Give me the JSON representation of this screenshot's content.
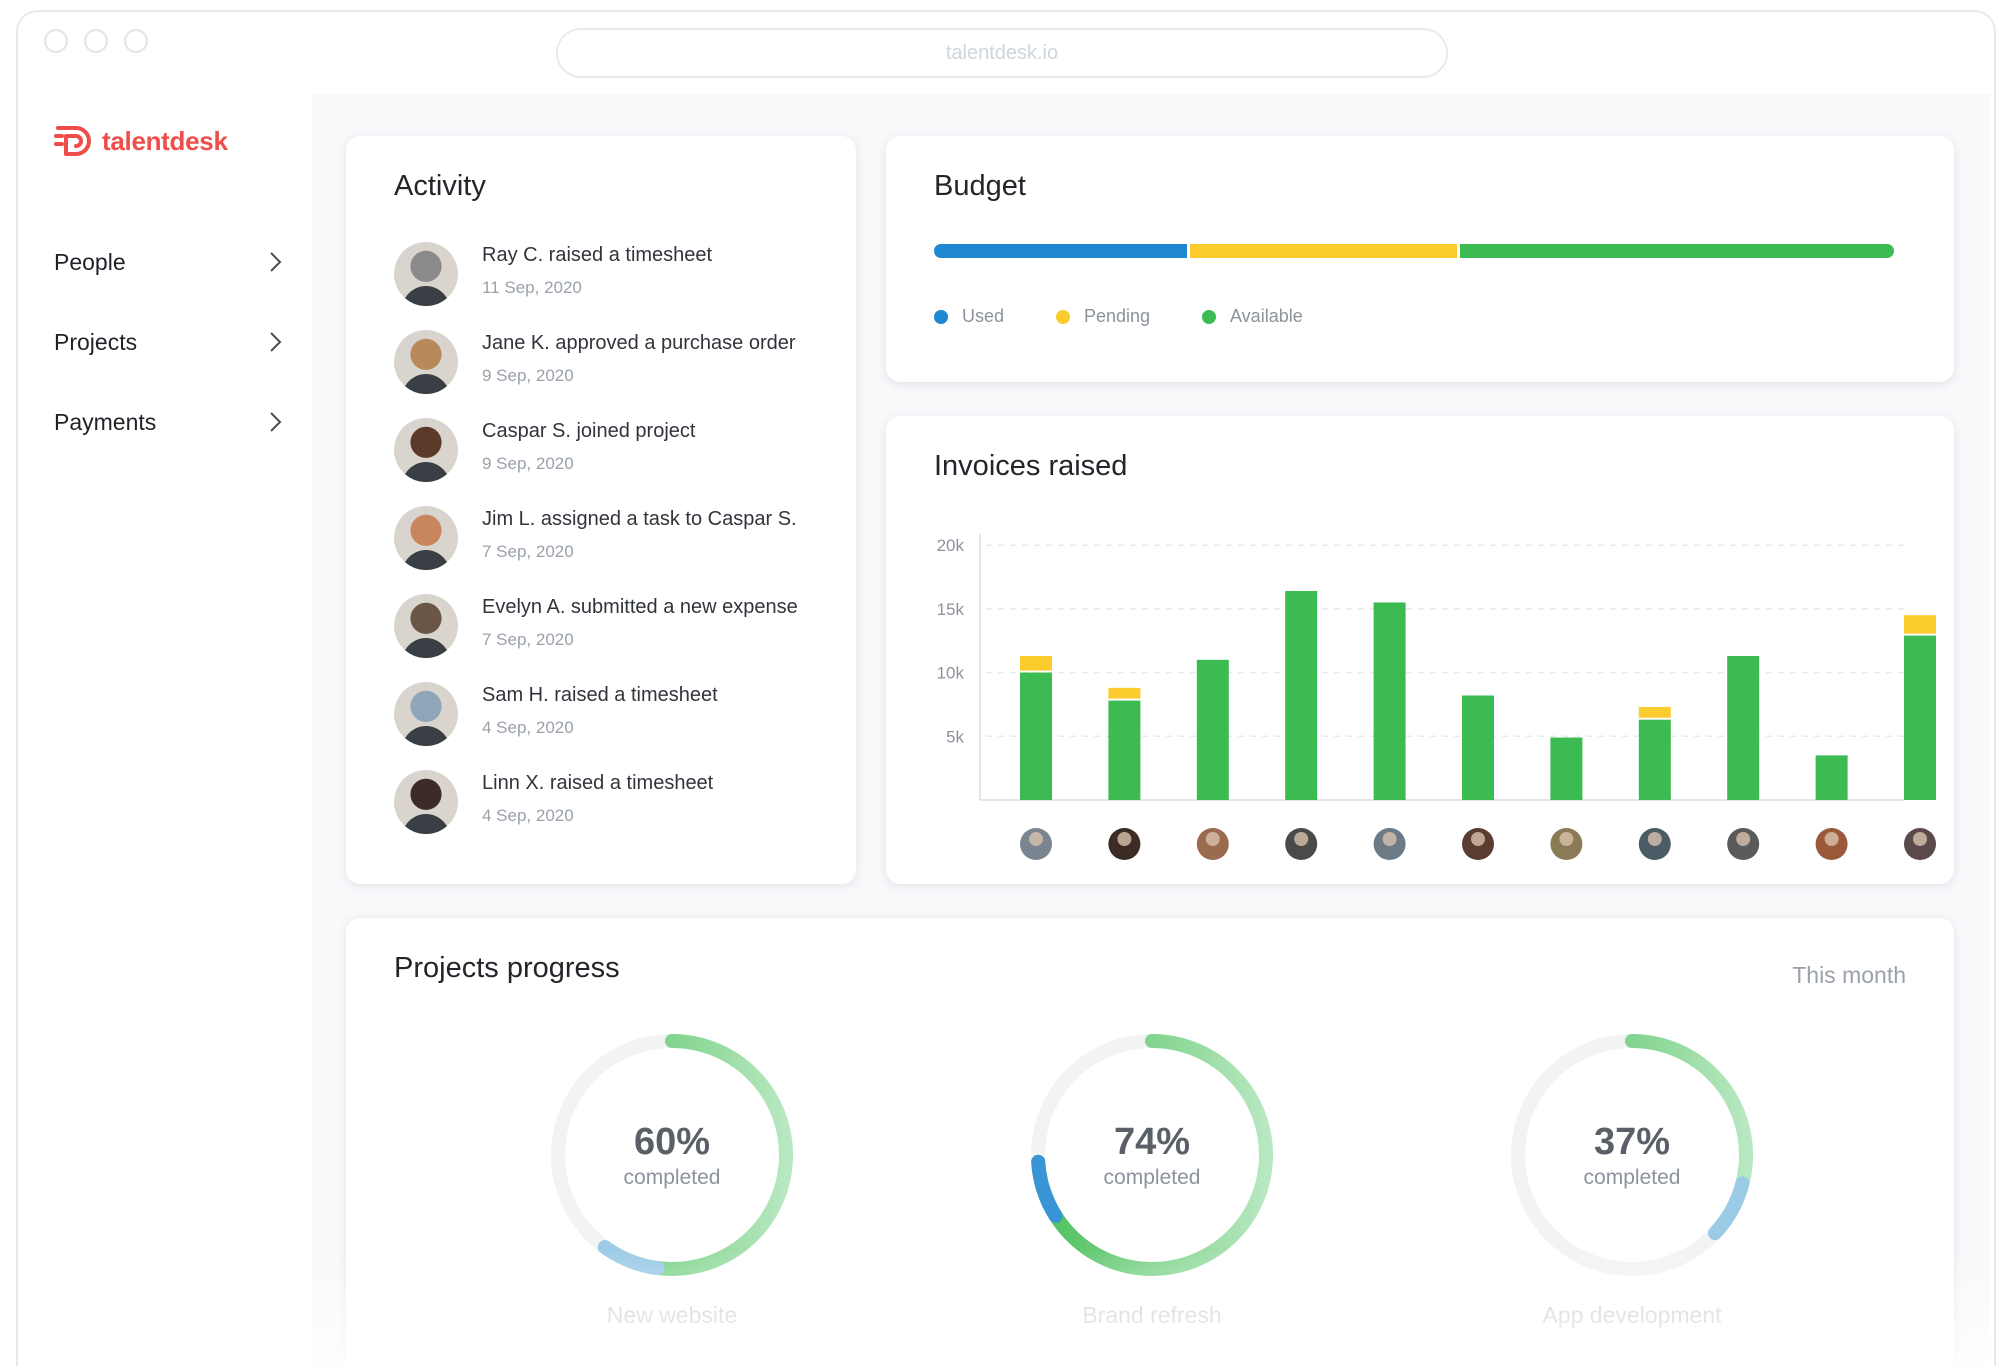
{
  "browser": {
    "url": "talentdesk.io"
  },
  "brand": {
    "name": "talentdesk",
    "color": "#ee4d4a"
  },
  "sidebar": {
    "items": [
      {
        "label": "People",
        "icon": "chevron-right-icon"
      },
      {
        "label": "Projects",
        "icon": "chevron-right-icon"
      },
      {
        "label": "Payments",
        "icon": "chevron-right-icon"
      }
    ]
  },
  "activity": {
    "title": "Activity",
    "items": [
      {
        "text": "Ray C. raised a timesheet",
        "date": "11 Sep, 2020",
        "avatar_color": "#8a8a8a"
      },
      {
        "text": "Jane K. approved a purchase order",
        "date": "9 Sep, 2020",
        "avatar_color": "#b88a5a"
      },
      {
        "text": "Caspar S. joined project",
        "date": "9 Sep, 2020",
        "avatar_color": "#5b3a2a"
      },
      {
        "text": "Jim L. assigned a task to Caspar S.",
        "date": "7 Sep, 2020",
        "avatar_color": "#c9855c"
      },
      {
        "text": "Evelyn A. submitted a new expense",
        "date": "7 Sep, 2020",
        "avatar_color": "#6b5646"
      },
      {
        "text": "Sam H. raised a timesheet",
        "date": "4 Sep, 2020",
        "avatar_color": "#8fa5b8"
      },
      {
        "text": "Linn X. raised a timesheet",
        "date": "4 Sep, 2020",
        "avatar_color": "#3b2c2a"
      }
    ]
  },
  "budget": {
    "title": "Budget",
    "segments": [
      {
        "label": "Used",
        "share": 0.265,
        "color": "#1e88d2"
      },
      {
        "label": "Pending",
        "share": 0.28,
        "color": "#fccb2d"
      },
      {
        "label": "Available",
        "share": 0.455,
        "color": "#3cbb52"
      }
    ]
  },
  "invoices": {
    "title": "Invoices raised",
    "chart_data": {
      "type": "bar",
      "stacked": true,
      "categories": [
        "",
        "",
        "",
        "",
        "",
        "",
        "",
        "",
        "",
        "",
        ""
      ],
      "series": [
        {
          "values": [
            10000,
            7800,
            11000,
            16400,
            15500,
            8200,
            4900,
            6300,
            11300,
            3500,
            12900
          ],
          "color": "#3cbb52"
        },
        {
          "values": [
            1300,
            1000,
            0,
            0,
            0,
            0,
            0,
            1000,
            0,
            0,
            1600
          ],
          "color": "#fccb2d"
        }
      ],
      "yticks": [
        "5k",
        "10k",
        "15k",
        "20k"
      ],
      "ytick_values": [
        5000,
        10000,
        15000,
        20000
      ],
      "ylim": [
        0,
        21500
      ],
      "grid": true,
      "xlabel": "",
      "ylabel": ""
    },
    "avatar_colors": [
      "#7a8591",
      "#3d2b25",
      "#9a6b4e",
      "#4a4a4a",
      "#6c7a86",
      "#5a3d30",
      "#8a7a55",
      "#4b5c66",
      "#5a5a5a",
      "#9a5a3a",
      "#5a4a4a"
    ]
  },
  "projects": {
    "title": "Projects progress",
    "filter": "This month",
    "items": [
      {
        "name": "New website",
        "percent_text": "60%",
        "percent": 60,
        "sub": "completed"
      },
      {
        "name": "Brand refresh",
        "percent_text": "74%",
        "percent": 74,
        "sub": "completed"
      },
      {
        "name": "App development",
        "percent_text": "37%",
        "percent": 37,
        "sub": "completed"
      }
    ]
  }
}
